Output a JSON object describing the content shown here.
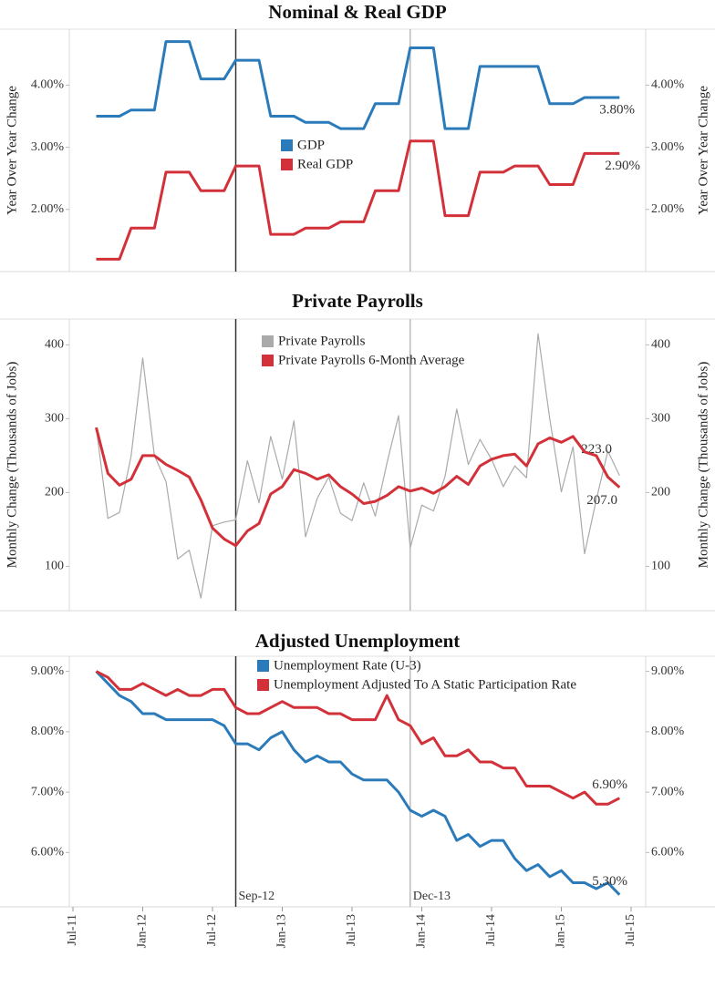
{
  "chart_data": [
    {
      "type": "line",
      "title": "Nominal & Real GDP",
      "y_label": "Year Over Year Change",
      "y2_label": "Year Over Year Change",
      "x": [
        "Sep-11",
        "Oct-11",
        "Nov-11",
        "Dec-11",
        "Jan-12",
        "Feb-12",
        "Mar-12",
        "Apr-12",
        "May-12",
        "Jun-12",
        "Jul-12",
        "Aug-12",
        "Sep-12",
        "Oct-12",
        "Nov-12",
        "Dec-12",
        "Jan-13",
        "Feb-13",
        "Mar-13",
        "Apr-13",
        "May-13",
        "Jun-13",
        "Jul-13",
        "Aug-13",
        "Sep-13",
        "Oct-13",
        "Nov-13",
        "Dec-13",
        "Jan-14",
        "Feb-14",
        "Mar-14",
        "Apr-14",
        "May-14",
        "Jun-14",
        "Jul-14",
        "Aug-14",
        "Sep-14",
        "Oct-14",
        "Nov-14",
        "Dec-14",
        "Jan-15",
        "Feb-15",
        "Mar-15",
        "Apr-15",
        "May-15",
        "Jun-15"
      ],
      "xlim": [
        "Jul-11",
        "Jul-15"
      ],
      "ylim": [
        1.0,
        4.9
      ],
      "yticks": [
        {
          "value": 2,
          "label": "2.00%"
        },
        {
          "value": 3,
          "label": "3.00%"
        },
        {
          "value": 4,
          "label": "4.00%"
        }
      ],
      "y2lim": [
        1.0,
        4.9
      ],
      "y2ticks": [
        {
          "value": 2,
          "label": "2.00%"
        },
        {
          "value": 3,
          "label": "3.00%"
        },
        {
          "value": 4,
          "label": "4.00%"
        }
      ],
      "annotations": [
        {
          "x": "Sep-12",
          "color": "#333333"
        },
        {
          "x": "Dec-13",
          "color": "#bbbbbb"
        }
      ],
      "series": [
        {
          "name": "GDP",
          "color": "#2b7bba",
          "values": [
            3.5,
            3.5,
            3.5,
            3.6,
            3.6,
            3.6,
            4.7,
            4.7,
            4.7,
            4.1,
            4.1,
            4.1,
            4.4,
            4.4,
            4.4,
            3.5,
            3.5,
            3.5,
            3.4,
            3.4,
            3.4,
            3.3,
            3.3,
            3.3,
            3.7,
            3.7,
            3.7,
            4.6,
            4.6,
            4.6,
            3.3,
            3.3,
            3.3,
            4.3,
            4.3,
            4.3,
            4.3,
            4.3,
            4.3,
            3.7,
            3.7,
            3.7,
            3.8,
            3.8,
            3.8,
            3.8
          ],
          "value_labels": {
            "45": "3.80%"
          }
        },
        {
          "name": "Real GDP",
          "color": "#d3313a",
          "values": [
            1.2,
            1.2,
            1.2,
            1.7,
            1.7,
            1.7,
            2.6,
            2.6,
            2.6,
            2.3,
            2.3,
            2.3,
            2.7,
            2.7,
            2.7,
            1.6,
            1.6,
            1.6,
            1.7,
            1.7,
            1.7,
            1.8,
            1.8,
            1.8,
            2.3,
            2.3,
            2.3,
            3.1,
            3.1,
            3.1,
            1.9,
            1.9,
            1.9,
            2.6,
            2.6,
            2.6,
            2.7,
            2.7,
            2.7,
            2.4,
            2.4,
            2.4,
            2.9,
            2.9,
            2.9,
            2.9
          ],
          "value_labels": {
            "45": "2.90%"
          }
        }
      ]
    },
    {
      "type": "line",
      "title": "Private Payrolls",
      "y_label": "Monthly Change (Thousands of Jobs)",
      "y2_label": "Monthly Change (Thousands of Jobs)",
      "x": [
        "Sep-11",
        "Oct-11",
        "Nov-11",
        "Dec-11",
        "Jan-12",
        "Feb-12",
        "Mar-12",
        "Apr-12",
        "May-12",
        "Jun-12",
        "Jul-12",
        "Aug-12",
        "Sep-12",
        "Oct-12",
        "Nov-12",
        "Dec-12",
        "Jan-13",
        "Feb-13",
        "Mar-13",
        "Apr-13",
        "May-13",
        "Jun-13",
        "Jul-13",
        "Aug-13",
        "Sep-13",
        "Oct-13",
        "Nov-13",
        "Dec-13",
        "Jan-14",
        "Feb-14",
        "Mar-14",
        "Apr-14",
        "May-14",
        "Jun-14",
        "Jul-14",
        "Aug-14",
        "Sep-14",
        "Oct-14",
        "Nov-14",
        "Dec-14",
        "Jan-15",
        "Feb-15",
        "Mar-15",
        "Apr-15",
        "May-15",
        "Jun-15"
      ],
      "xlim": [
        "Jul-11",
        "Jul-15"
      ],
      "ylim": [
        40,
        435
      ],
      "yticks": [
        100,
        200,
        300,
        400
      ],
      "y2lim": [
        40,
        435
      ],
      "y2ticks": [
        100,
        200,
        300,
        400
      ],
      "annotations": [
        {
          "x": "Sep-12",
          "color": "#333333"
        },
        {
          "x": "Dec-13",
          "color": "#bbbbbb"
        }
      ],
      "series": [
        {
          "name": "Private Payrolls",
          "color": "#aaaaaa",
          "width": 1.2,
          "values": [
            288,
            165,
            173,
            250,
            382,
            250,
            215,
            110,
            122,
            57,
            155,
            160,
            163,
            243,
            186,
            276,
            218,
            297,
            140,
            192,
            221,
            172,
            162,
            213,
            168,
            240,
            304,
            125,
            183,
            175,
            222,
            313,
            238,
            272,
            245,
            208,
            236,
            220,
            415,
            300,
            201,
            262,
            117,
            190,
            256,
            223
          ],
          "value_labels": {
            "45": "223.0"
          }
        },
        {
          "name": "Private Payrolls 6-Month Average",
          "color": "#d3313a",
          "values": [
            288,
            226,
            210,
            218,
            250,
            250,
            238,
            230,
            221,
            190,
            152,
            137,
            128,
            148,
            158,
            198,
            208,
            231,
            226,
            218,
            224,
            208,
            198,
            185,
            188,
            196,
            208,
            202,
            206,
            199,
            208,
            222,
            211,
            236,
            245,
            250,
            252,
            236,
            266,
            274,
            268,
            276,
            255,
            250,
            221,
            207
          ],
          "value_labels": {
            "45": "207.0"
          }
        }
      ]
    },
    {
      "type": "line",
      "title": "Adjusted Unemployment",
      "x": [
        "Sep-11",
        "Oct-11",
        "Nov-11",
        "Dec-11",
        "Jan-12",
        "Feb-12",
        "Mar-12",
        "Apr-12",
        "May-12",
        "Jun-12",
        "Jul-12",
        "Aug-12",
        "Sep-12",
        "Oct-12",
        "Nov-12",
        "Dec-12",
        "Jan-13",
        "Feb-13",
        "Mar-13",
        "Apr-13",
        "May-13",
        "Jun-13",
        "Jul-13",
        "Aug-13",
        "Sep-13",
        "Oct-13",
        "Nov-13",
        "Dec-13",
        "Jan-14",
        "Feb-14",
        "Mar-14",
        "Apr-14",
        "May-14",
        "Jun-14",
        "Jul-14",
        "Aug-14",
        "Sep-14",
        "Oct-14",
        "Nov-14",
        "Dec-14",
        "Jan-15",
        "Feb-15",
        "Mar-15",
        "Apr-15",
        "May-15",
        "Jun-15"
      ],
      "xlim": [
        "Jul-11",
        "Jul-15"
      ],
      "xticks": [
        "Jul-11",
        "Jan-12",
        "Jul-12",
        "Jan-13",
        "Jul-13",
        "Jan-14",
        "Jul-14",
        "Jan-15",
        "Jul-15"
      ],
      "ylim": [
        5.1,
        9.25
      ],
      "yticks": [
        {
          "value": 6,
          "label": "6.00%"
        },
        {
          "value": 7,
          "label": "7.00%"
        },
        {
          "value": 8,
          "label": "8.00%"
        },
        {
          "value": 9,
          "label": "9.00%"
        }
      ],
      "y2lim": [
        5.1,
        9.25
      ],
      "y2ticks": [
        {
          "value": 6,
          "label": "6.00%"
        },
        {
          "value": 7,
          "label": "7.00%"
        },
        {
          "value": 8,
          "label": "8.00%"
        },
        {
          "value": 9,
          "label": "9.00%"
        }
      ],
      "annotations": [
        {
          "x": "Sep-12",
          "color": "#333333",
          "label": "Sep-12"
        },
        {
          "x": "Dec-13",
          "color": "#bbbbbb",
          "label": "Dec-13"
        }
      ],
      "series": [
        {
          "name": "Unemployment Rate (U-3)",
          "color": "#2b7bba",
          "values": [
            9.0,
            8.8,
            8.6,
            8.5,
            8.3,
            8.3,
            8.2,
            8.2,
            8.2,
            8.2,
            8.2,
            8.1,
            7.8,
            7.8,
            7.7,
            7.9,
            8.0,
            7.7,
            7.5,
            7.6,
            7.5,
            7.5,
            7.3,
            7.2,
            7.2,
            7.2,
            7.0,
            6.7,
            6.6,
            6.7,
            6.6,
            6.2,
            6.3,
            6.1,
            6.2,
            6.2,
            5.9,
            5.7,
            5.8,
            5.6,
            5.7,
            5.5,
            5.5,
            5.4,
            5.5,
            5.3
          ],
          "value_labels": {
            "45": "5.30%"
          }
        },
        {
          "name": "Unemployment Adjusted To A Static Participation Rate",
          "color": "#d3313a",
          "values": [
            9.0,
            8.9,
            8.7,
            8.7,
            8.8,
            8.7,
            8.6,
            8.7,
            8.6,
            8.6,
            8.7,
            8.7,
            8.4,
            8.3,
            8.3,
            8.4,
            8.5,
            8.4,
            8.4,
            8.4,
            8.3,
            8.3,
            8.2,
            8.2,
            8.2,
            8.6,
            8.2,
            8.1,
            7.8,
            7.9,
            7.6,
            7.6,
            7.7,
            7.5,
            7.5,
            7.4,
            7.4,
            7.1,
            7.1,
            7.1,
            7.0,
            6.9,
            7.0,
            6.8,
            6.8,
            6.9
          ],
          "value_labels": {
            "45": "6.90%"
          }
        }
      ]
    }
  ]
}
